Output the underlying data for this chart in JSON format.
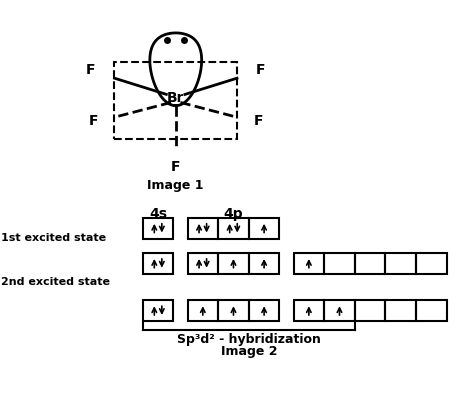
{
  "title1": "Image 1",
  "title2": "Image 2",
  "label_4s": "4s",
  "label_4p": "4p",
  "label_1st": "1st excited state",
  "label_2nd": "2nd excited state",
  "label_hyb": "Sp³d² - hybridization",
  "bg_color": "#ffffff",
  "fig_width": 4.74,
  "fig_height": 4.07,
  "dpi": 100
}
